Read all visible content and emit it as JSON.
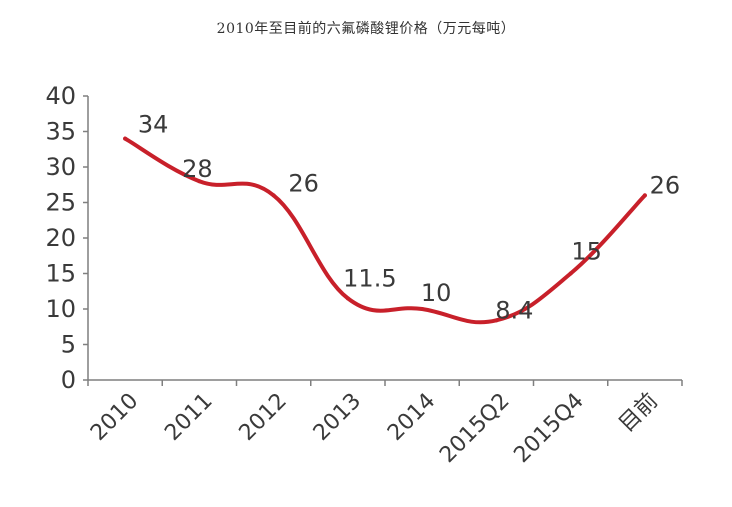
{
  "chart_data": {
    "type": "line",
    "title": "2010年至目前的六氟磷酸锂价格（万元每吨）",
    "xlabel": "",
    "ylabel": "",
    "categories": [
      "2010",
      "2011",
      "2012",
      "2013",
      "2014",
      "2015Q2",
      "2015Q4",
      "目前"
    ],
    "values": [
      34,
      28,
      26,
      11.5,
      10,
      8.4,
      15,
      26
    ],
    "data_labels": [
      "34",
      "28",
      "26",
      "11.5",
      "10",
      "8.4",
      "15",
      "26"
    ],
    "ylim": [
      0,
      40
    ],
    "yticks": [
      "0",
      "5",
      "10",
      "15",
      "20",
      "25",
      "30",
      "35",
      "40"
    ],
    "grid": false,
    "line_color": "#c8202a",
    "axis_color": "#7f7f7f"
  }
}
